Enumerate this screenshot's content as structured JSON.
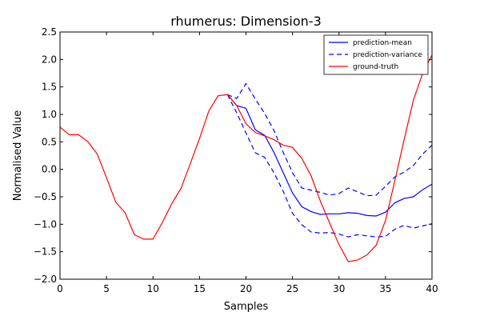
{
  "chart_data": {
    "type": "line",
    "title": "rhumerus: Dimension-3",
    "xlabel": "Samples",
    "ylabel": "Normalised Value",
    "xlim": [
      0,
      40
    ],
    "ylim": [
      -2.0,
      2.5
    ],
    "xticks": [
      0,
      5,
      10,
      15,
      20,
      25,
      30,
      35,
      40
    ],
    "xtick_labels": [
      "0",
      "5",
      "10",
      "15",
      "20",
      "25",
      "30",
      "35",
      "40"
    ],
    "yticks": [
      -2.0,
      -1.5,
      -1.0,
      -0.5,
      0.0,
      0.5,
      1.0,
      1.5,
      2.0,
      2.5
    ],
    "ytick_labels": [
      "−2.0",
      "−1.5",
      "−1.0",
      "−0.5",
      "0.0",
      "0.5",
      "1.0",
      "1.5",
      "2.0",
      "2.5"
    ],
    "grid": false,
    "legend_position": "top-right",
    "series": [
      {
        "name": "prediction-mean",
        "color": "#0000ff",
        "dash": "solid",
        "x": [
          18,
          19,
          20,
          21,
          22,
          23,
          24,
          25,
          26,
          27,
          28,
          29,
          30,
          31,
          32,
          33,
          34,
          35,
          36,
          37,
          38,
          39,
          40
        ],
        "y": [
          1.36,
          1.16,
          1.11,
          0.72,
          0.62,
          0.31,
          -0.06,
          -0.43,
          -0.68,
          -0.77,
          -0.82,
          -0.81,
          -0.81,
          -0.79,
          -0.8,
          -0.84,
          -0.85,
          -0.78,
          -0.61,
          -0.53,
          -0.5,
          -0.37,
          -0.27
        ]
      },
      {
        "name": "prediction-variance",
        "color": "#0000ff",
        "dash": "dashed",
        "x": [
          18,
          19,
          20,
          21,
          22,
          23,
          24,
          25,
          26,
          27,
          28,
          29,
          30,
          31,
          32,
          33,
          34,
          35,
          36,
          37,
          38,
          39,
          40
        ],
        "y": [
          1.36,
          1.29,
          1.56,
          1.28,
          1.02,
          0.71,
          0.31,
          -0.06,
          -0.34,
          -0.38,
          -0.42,
          -0.47,
          -0.44,
          -0.34,
          -0.41,
          -0.48,
          -0.47,
          -0.31,
          -0.14,
          -0.05,
          0.07,
          0.28,
          0.44
        ]
      },
      {
        "name": "",
        "color": "#0000ff",
        "dash": "dashed",
        "x": [
          18,
          19,
          20,
          21,
          22,
          23,
          24,
          25,
          26,
          27,
          28,
          29,
          30,
          31,
          32,
          33,
          34,
          35,
          36,
          37,
          38,
          39,
          40
        ],
        "y": [
          1.36,
          1.03,
          0.66,
          0.3,
          0.22,
          -0.06,
          -0.4,
          -0.8,
          -1.01,
          -1.14,
          -1.16,
          -1.15,
          -1.18,
          -1.23,
          -1.19,
          -1.21,
          -1.23,
          -1.22,
          -1.09,
          -1.02,
          -1.07,
          -1.03,
          -0.99
        ]
      },
      {
        "name": "ground-truth",
        "color": "#ff0000",
        "dash": "solid",
        "x": [
          0,
          1,
          2,
          3,
          4,
          5,
          6,
          7,
          8,
          9,
          10,
          11,
          12,
          13,
          14,
          15,
          16,
          17,
          18,
          19,
          20,
          21,
          22,
          23,
          24,
          25,
          26,
          27,
          28,
          29,
          30,
          31,
          32,
          33,
          34,
          35,
          36,
          37,
          38,
          39,
          40
        ],
        "y": [
          0.77,
          0.63,
          0.63,
          0.5,
          0.28,
          -0.15,
          -0.6,
          -0.79,
          -1.19,
          -1.27,
          -1.27,
          -0.97,
          -0.63,
          -0.35,
          0.1,
          0.56,
          1.06,
          1.34,
          1.36,
          1.16,
          0.83,
          0.67,
          0.61,
          0.54,
          0.44,
          0.4,
          0.2,
          -0.12,
          -0.58,
          -0.98,
          -1.37,
          -1.68,
          -1.65,
          -1.56,
          -1.38,
          -0.93,
          -0.21,
          0.54,
          1.26,
          1.75,
          2.08
        ]
      }
    ]
  }
}
